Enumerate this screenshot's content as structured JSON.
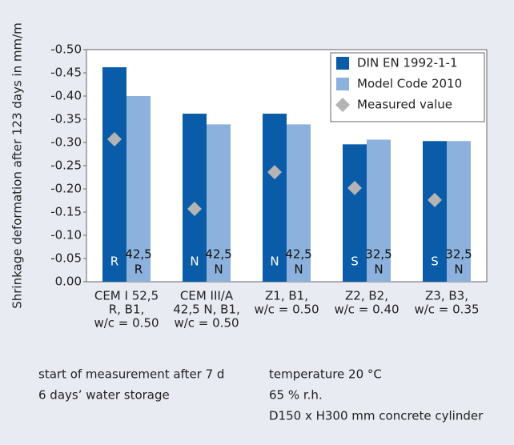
{
  "chart_data": {
    "type": "bar",
    "y_label": "Shrinkage deformation after 123 days in mm/m",
    "categories": [
      [
        "CEM I 52,5",
        "R, B1,",
        "w/c = 0.50"
      ],
      [
        "CEM III/A",
        "42,5 N, B1,",
        "w/c = 0.50"
      ],
      [
        "Z1, B1,",
        "w/c = 0.50"
      ],
      [
        "Z2, B2,",
        "w/c = 0.40"
      ],
      [
        "Z3, B3,",
        "w/c = 0.35"
      ]
    ],
    "series": [
      {
        "name": "DIN EN 1992-1-1",
        "color": "#0a5ca8",
        "values": [
          -0.462,
          -0.362,
          -0.362,
          -0.296,
          -0.303
        ],
        "labels": [
          "R",
          "N",
          "N",
          "S",
          "S"
        ]
      },
      {
        "name": "Model Code 2010",
        "color": "#8cb1dd",
        "values": [
          -0.4,
          -0.339,
          -0.339,
          -0.306,
          -0.303
        ],
        "labels": [
          [
            "42,5",
            "R"
          ],
          [
            "42,5",
            "N"
          ],
          [
            "42,5",
            "N"
          ],
          [
            "32,5",
            "N"
          ],
          [
            "32,5",
            "N"
          ]
        ]
      },
      {
        "name": "Measured value",
        "color": "#b4b4b4",
        "marker": "diamond",
        "values": [
          -0.307,
          -0.157,
          -0.236,
          -0.202,
          -0.176
        ]
      }
    ],
    "ylim": [
      0,
      -0.5
    ],
    "yticks": [
      {
        "value": 0,
        "label": "0.00"
      },
      -0.05,
      {
        "value": -0.1,
        "label": "-0.10"
      },
      -0.15,
      {
        "value": -0.2,
        "label": "-0.20"
      },
      -0.25,
      {
        "value": -0.3,
        "label": "-0.30"
      },
      -0.35,
      {
        "value": -0.4,
        "label": "-0.40"
      },
      -0.45,
      {
        "value": -0.5,
        "label": "-0.50"
      }
    ],
    "grid": false,
    "legend": "top-right",
    "notes": {
      "left": [
        "start of measurement after 7 d",
        "6 days’ water storage"
      ],
      "right": [
        "temperature 20 °C",
        "65 % r.h.",
        "D150 x H300 mm concrete cylinder"
      ]
    }
  }
}
